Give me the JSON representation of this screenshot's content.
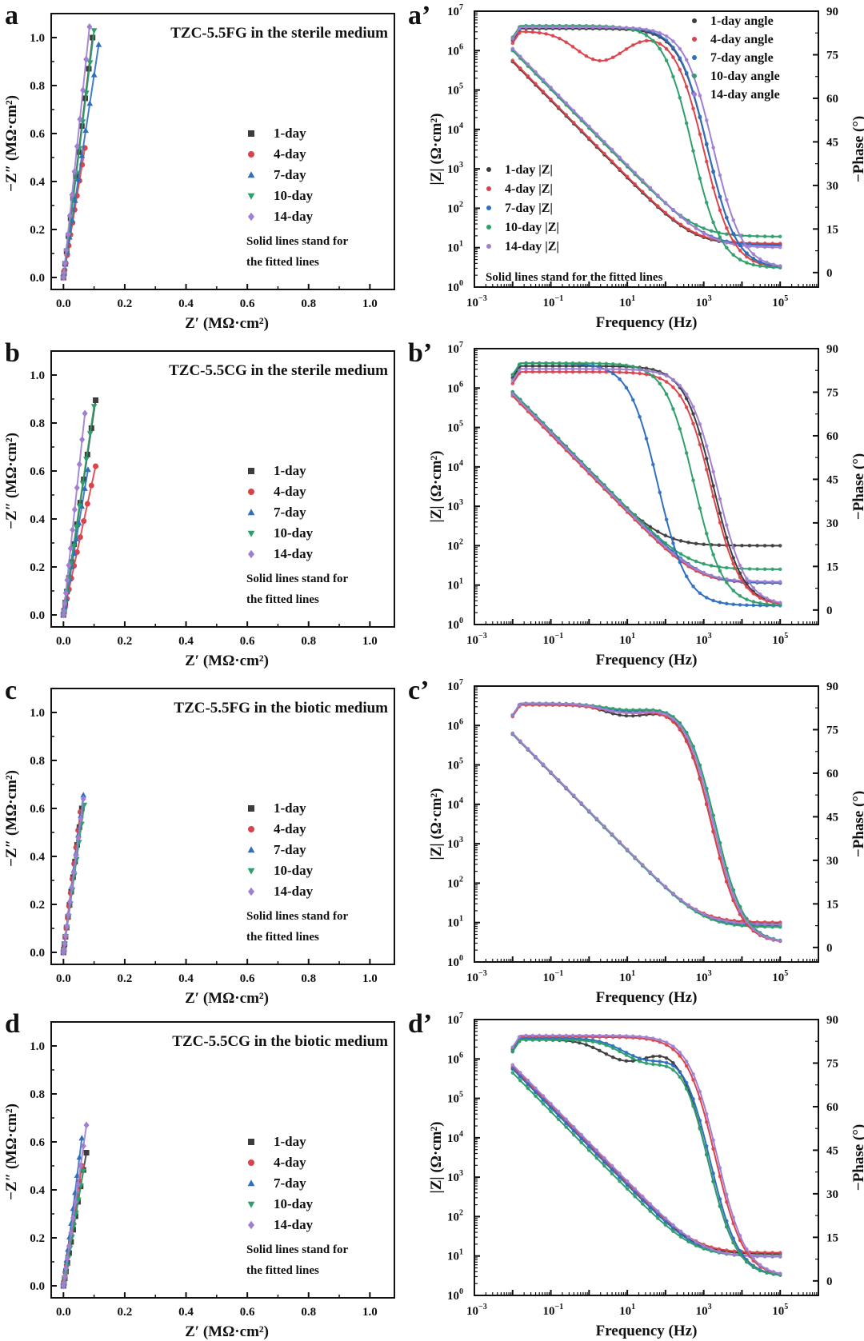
{
  "colors": {
    "1-day": "#3d3d3d",
    "4-day": "#d9434a",
    "7-day": "#2f6fbf",
    "10-day": "#2e9e6b",
    "14-day": "#a07fd1"
  },
  "chart_data": [
    {
      "id": "a",
      "panel_label": "a",
      "type": "scatter",
      "title": "TZC-5.5FG in the sterile medium",
      "xlabel": "Z′ (MΩ·cm²)",
      "ylabel": "−Z″ (MΩ·cm²)",
      "xlim": [
        -0.04,
        1.08
      ],
      "ylim": [
        -0.05,
        1.1
      ],
      "xticks": [
        "0.0",
        "0.2",
        "0.4",
        "0.6",
        "0.8",
        "1.0"
      ],
      "yticks": [
        "0.0",
        "0.2",
        "0.4",
        "0.6",
        "0.8",
        "1.0"
      ],
      "legend": [
        "1-day",
        "4-day",
        "7-day",
        "10-day",
        "14-day"
      ],
      "legend_position": "center-right",
      "note": [
        "Solid lines stand for",
        "the fitted lines"
      ],
      "series": [
        {
          "name": "1-day",
          "marker": "square",
          "end": [
            0.095,
            1.0
          ]
        },
        {
          "name": "4-day",
          "marker": "circle",
          "end": [
            0.07,
            0.54
          ]
        },
        {
          "name": "7-day",
          "marker": "triangle-up",
          "end": [
            0.115,
            0.97
          ]
        },
        {
          "name": "10-day",
          "marker": "triangle-down",
          "end": [
            0.1,
            1.03
          ]
        },
        {
          "name": "14-day",
          "marker": "diamond",
          "end": [
            0.085,
            1.045
          ]
        }
      ]
    },
    {
      "id": "b",
      "panel_label": "b",
      "type": "scatter",
      "title": "TZC-5.5CG in the sterile medium",
      "xlabel": "Z′ (MΩ·cm²)",
      "ylabel": "−Z″ (MΩ·cm²)",
      "xlim": [
        -0.04,
        1.08
      ],
      "ylim": [
        -0.05,
        1.1
      ],
      "xticks": [
        "0.0",
        "0.2",
        "0.4",
        "0.6",
        "0.8",
        "1.0"
      ],
      "yticks": [
        "0.0",
        "0.2",
        "0.4",
        "0.6",
        "0.8",
        "1.0"
      ],
      "legend": [
        "1-day",
        "4-day",
        "7-day",
        "10-day",
        "14-day"
      ],
      "legend_position": "center-right",
      "note": [
        "Solid lines stand for",
        "the fitted lines"
      ],
      "series": [
        {
          "name": "1-day",
          "marker": "square",
          "end": [
            0.105,
            0.895
          ]
        },
        {
          "name": "4-day",
          "marker": "circle",
          "end": [
            0.105,
            0.62
          ]
        },
        {
          "name": "7-day",
          "marker": "triangle-up",
          "end": [
            0.08,
            0.605
          ]
        },
        {
          "name": "10-day",
          "marker": "triangle-down",
          "end": [
            0.1,
            0.87
          ]
        },
        {
          "name": "14-day",
          "marker": "diamond",
          "end": [
            0.07,
            0.84
          ]
        }
      ]
    },
    {
      "id": "c",
      "panel_label": "c",
      "type": "scatter",
      "title": "TZC-5.5FG in the biotic medium",
      "xlabel": "Z′ (MΩ·cm²)",
      "ylabel": "−Z″ (MΩ·cm²)",
      "xlim": [
        -0.04,
        1.08
      ],
      "ylim": [
        -0.05,
        1.1
      ],
      "xticks": [
        "0.0",
        "0.2",
        "0.4",
        "0.6",
        "0.8",
        "1.0"
      ],
      "yticks": [
        "0.0",
        "0.2",
        "0.4",
        "0.6",
        "0.8",
        "1.0"
      ],
      "legend": [
        "1-day",
        "4-day",
        "7-day",
        "10-day",
        "14-day"
      ],
      "legend_position": "center-right",
      "note": [
        "Solid lines stand for",
        "the fitted lines"
      ],
      "series": [
        {
          "name": "1-day",
          "marker": "square",
          "end": [
            0.06,
            0.6
          ]
        },
        {
          "name": "4-day",
          "marker": "circle",
          "end": [
            0.055,
            0.585
          ]
        },
        {
          "name": "7-day",
          "marker": "triangle-up",
          "end": [
            0.065,
            0.655
          ]
        },
        {
          "name": "10-day",
          "marker": "triangle-down",
          "end": [
            0.068,
            0.615
          ]
        },
        {
          "name": "14-day",
          "marker": "diamond",
          "end": [
            0.065,
            0.64
          ]
        }
      ]
    },
    {
      "id": "d",
      "panel_label": "d",
      "type": "scatter",
      "title": "TZC-5.5CG in the biotic medium",
      "xlabel": "Z′ (MΩ·cm²)",
      "ylabel": "−Z″ (MΩ·cm²)",
      "xlim": [
        -0.04,
        1.08
      ],
      "ylim": [
        -0.05,
        1.1
      ],
      "xticks": [
        "0.0",
        "0.2",
        "0.4",
        "0.6",
        "0.8",
        "1.0"
      ],
      "yticks": [
        "0.0",
        "0.2",
        "0.4",
        "0.6",
        "0.8",
        "1.0"
      ],
      "legend": [
        "1-day",
        "4-day",
        "7-day",
        "10-day",
        "14-day"
      ],
      "legend_position": "center-right",
      "note": [
        "Solid lines stand for",
        "the fitted lines"
      ],
      "series": [
        {
          "name": "1-day",
          "marker": "square",
          "end": [
            0.075,
            0.555
          ]
        },
        {
          "name": "4-day",
          "marker": "circle",
          "end": [
            0.06,
            0.5
          ]
        },
        {
          "name": "7-day",
          "marker": "triangle-up",
          "end": [
            0.06,
            0.615
          ]
        },
        {
          "name": "10-day",
          "marker": "triangle-down",
          "end": [
            0.065,
            0.48
          ]
        },
        {
          "name": "14-day",
          "marker": "diamond",
          "end": [
            0.075,
            0.67
          ]
        }
      ]
    },
    {
      "id": "a2",
      "panel_label": "a’",
      "type": "line",
      "xlabel": "Frequency (Hz)",
      "ylabel": "|Z| (Ω·cm²)",
      "y2label": "−Phase (°)",
      "xlim_log10": [
        -3,
        6
      ],
      "ylim_log10": [
        0,
        7
      ],
      "y2lim": [
        -5,
        90
      ],
      "xticks": [
        "10^-3",
        "10^-1",
        "10^1",
        "10^3",
        "10^5"
      ],
      "yticks": [
        "10^0",
        "10^1",
        "10^2",
        "10^3",
        "10^4",
        "10^5",
        "10^6",
        "10^7"
      ],
      "y2ticks": [
        "0",
        "15",
        "30",
        "45",
        "60",
        "75",
        "90"
      ],
      "legend_angle": [
        "1-day angle",
        "4-day angle",
        "7-day angle",
        "10-day angle",
        "14-day angle"
      ],
      "legend_angle_position": "top-right",
      "legend_modulus": [
        "1-day |Z|",
        "4-day |Z|",
        "7-day |Z|",
        "10-day |Z|",
        "14-day |Z|"
      ],
      "legend_modulus_position": "lower-left",
      "note": [
        "Solid lines stand for the fitted lines"
      ],
      "modulus": [
        {
          "name": "1-day",
          "logZ_low": 5.72,
          "logRs": 1.08
        },
        {
          "name": "4-day",
          "logZ_low": 5.75,
          "logRs": 1.1
        },
        {
          "name": "7-day",
          "logZ_low": 6.03,
          "logRs": 1.05
        },
        {
          "name": "10-day",
          "logZ_low": 6.0,
          "logRs": 1.28
        },
        {
          "name": "14-day",
          "logZ_low": 6.05,
          "logRs": 1.0
        }
      ],
      "phase": [
        {
          "name": "1-day",
          "plateau": 84,
          "knee_log10f": 3.1,
          "dip": null
        },
        {
          "name": "4-day",
          "plateau": 83,
          "knee_log10f": 3.0,
          "dip": {
            "center_log10f": 0.3,
            "value": 73
          }
        },
        {
          "name": "7-day",
          "plateau": 84.5,
          "knee_log10f": 3.1,
          "dip": null
        },
        {
          "name": "10-day",
          "plateau": 85,
          "knee_log10f": 2.7,
          "dip": null
        },
        {
          "name": "14-day",
          "plateau": 84.5,
          "knee_log10f": 3.25,
          "dip": null
        }
      ]
    },
    {
      "id": "b2",
      "panel_label": "b’",
      "type": "line",
      "xlabel": "Frequency (Hz)",
      "ylabel": "|Z| (Ω·cm²)",
      "y2label": "−Phase (°)",
      "xlim_log10": [
        -3,
        6
      ],
      "ylim_log10": [
        0,
        7
      ],
      "y2lim": [
        -5,
        90
      ],
      "xticks": [
        "10^-3",
        "10^-1",
        "10^1",
        "10^3",
        "10^5"
      ],
      "yticks": [
        "10^0",
        "10^1",
        "10^2",
        "10^3",
        "10^4",
        "10^5",
        "10^6",
        "10^7"
      ],
      "y2ticks": [
        "0",
        "15",
        "30",
        "45",
        "60",
        "75",
        "90"
      ],
      "modulus": [
        {
          "name": "1-day",
          "logZ_low": 5.85,
          "logRs": 2.0
        },
        {
          "name": "4-day",
          "logZ_low": 5.8,
          "logRs": 1.05
        },
        {
          "name": "7-day",
          "logZ_low": 5.9,
          "logRs": 1.05
        },
        {
          "name": "10-day",
          "logZ_low": 5.9,
          "logRs": 1.4
        },
        {
          "name": "14-day",
          "logZ_low": 5.85,
          "logRs": 1.08
        }
      ],
      "phase": [
        {
          "name": "1-day",
          "plateau": 84,
          "knee_log10f": 3.25,
          "dip": null
        },
        {
          "name": "4-day",
          "plateau": 82,
          "knee_log10f": 3.2,
          "dip": null
        },
        {
          "name": "7-day",
          "plateau": 85,
          "knee_log10f": 1.8,
          "dip": null
        },
        {
          "name": "10-day",
          "plateau": 85,
          "knee_log10f": 2.75,
          "dip": null
        },
        {
          "name": "14-day",
          "plateau": 83,
          "knee_log10f": 3.35,
          "dip": null
        }
      ]
    },
    {
      "id": "c2",
      "panel_label": "c’",
      "type": "line",
      "xlabel": "Frequency (Hz)",
      "ylabel": "|Z| (Ω·cm²)",
      "y2label": "−Phase (°)",
      "xlim_log10": [
        -3,
        6
      ],
      "ylim_log10": [
        0,
        7
      ],
      "y2lim": [
        -5,
        90
      ],
      "xticks": [
        "10^-3",
        "10^-1",
        "10^1",
        "10^3",
        "10^5"
      ],
      "yticks": [
        "10^0",
        "10^1",
        "10^2",
        "10^3",
        "10^4",
        "10^5",
        "10^6",
        "10^7"
      ],
      "y2ticks": [
        "0",
        "15",
        "30",
        "45",
        "60",
        "75",
        "90"
      ],
      "modulus": [
        {
          "name": "1-day",
          "logZ_low": 5.78,
          "logRs": 0.98
        },
        {
          "name": "4-day",
          "logZ_low": 5.78,
          "logRs": 1.0
        },
        {
          "name": "7-day",
          "logZ_low": 5.8,
          "logRs": 0.92
        },
        {
          "name": "10-day",
          "logZ_low": 5.78,
          "logRs": 0.88
        },
        {
          "name": "14-day",
          "logZ_low": 5.8,
          "logRs": 0.95
        }
      ],
      "phase": [
        {
          "name": "1-day",
          "plateau": 84,
          "knee_log10f": 3.2,
          "dip": {
            "center_log10f": 1.0,
            "value": 80
          }
        },
        {
          "name": "4-day",
          "plateau": 83.5,
          "knee_log10f": 3.2,
          "dip": {
            "center_log10f": 1.0,
            "value": 81
          }
        },
        {
          "name": "7-day",
          "plateau": 84,
          "knee_log10f": 3.3,
          "dip": {
            "center_log10f": 1.0,
            "value": 81.5
          }
        },
        {
          "name": "10-day",
          "plateau": 84,
          "knee_log10f": 3.3,
          "dip": {
            "center_log10f": 1.0,
            "value": 82
          }
        },
        {
          "name": "14-day",
          "plateau": 84,
          "knee_log10f": 3.25,
          "dip": {
            "center_log10f": 1.0,
            "value": 81
          }
        }
      ]
    },
    {
      "id": "d2",
      "panel_label": "d’",
      "type": "line",
      "xlabel": "Frequency (Hz)",
      "ylabel": "|Z| (Ω·cm²)",
      "y2label": "−Phase (°)",
      "xlim_log10": [
        -3,
        6
      ],
      "ylim_log10": [
        0,
        7
      ],
      "y2lim": [
        -5,
        90
      ],
      "xticks": [
        "10^-3",
        "10^-1",
        "10^1",
        "10^3",
        "10^5"
      ],
      "yticks": [
        "10^0",
        "10^1",
        "10^2",
        "10^3",
        "10^4",
        "10^5",
        "10^6",
        "10^7"
      ],
      "y2ticks": [
        "0",
        "15",
        "30",
        "45",
        "60",
        "75",
        "90"
      ],
      "modulus": [
        {
          "name": "1-day",
          "logZ_low": 5.75,
          "logRs": 1.05
        },
        {
          "name": "4-day",
          "logZ_low": 5.8,
          "logRs": 1.08
        },
        {
          "name": "7-day",
          "logZ_low": 5.75,
          "logRs": 0.98
        },
        {
          "name": "10-day",
          "logZ_low": 5.65,
          "logRs": 1.0
        },
        {
          "name": "14-day",
          "logZ_low": 5.85,
          "logRs": 0.98
        }
      ],
      "phase": [
        {
          "name": "1-day",
          "plateau": 83,
          "knee_log10f": 3.1,
          "dip": {
            "center_log10f": 1.0,
            "value": 76
          }
        },
        {
          "name": "4-day",
          "plateau": 84,
          "knee_log10f": 3.3,
          "dip": null
        },
        {
          "name": "7-day",
          "plateau": 83.5,
          "knee_log10f": 3.15,
          "dip": {
            "center_log10f": 1.5,
            "value": 77
          }
        },
        {
          "name": "10-day",
          "plateau": 83,
          "knee_log10f": 3.1,
          "dip": {
            "center_log10f": 1.5,
            "value": 76
          }
        },
        {
          "name": "14-day",
          "plateau": 84.5,
          "knee_log10f": 3.35,
          "dip": null
        }
      ]
    }
  ]
}
